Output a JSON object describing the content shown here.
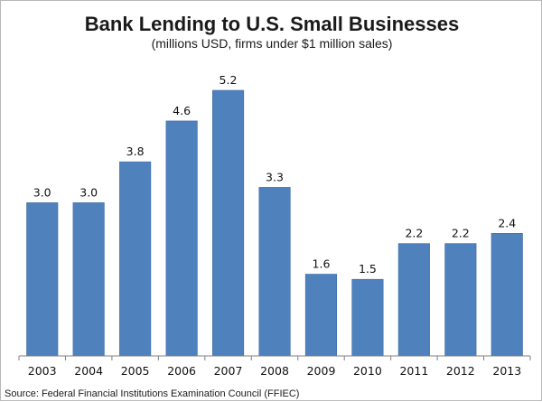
{
  "chart_data": {
    "type": "bar",
    "title": "Bank Lending to U.S. Small Businesses",
    "subtitle": "(millions USD, firms under $1 million sales)",
    "categories": [
      "2003",
      "2004",
      "2005",
      "2006",
      "2007",
      "2008",
      "2009",
      "2010",
      "2011",
      "2012",
      "2013"
    ],
    "values": [
      3.0,
      3.0,
      3.8,
      4.6,
      5.2,
      3.3,
      1.6,
      1.5,
      2.2,
      2.2,
      2.4
    ],
    "value_labels": [
      "3.0",
      "3.0",
      "3.8",
      "4.6",
      "5.2",
      "3.3",
      "1.6",
      "1.5",
      "2.2",
      "2.2",
      "2.4"
    ],
    "ylim": [
      0,
      5.5
    ],
    "grid": false,
    "legend": "none",
    "bar_color": "#4f81bd",
    "source": "Source: Federal Financial Institutions Examination Council (FFIEC)"
  }
}
